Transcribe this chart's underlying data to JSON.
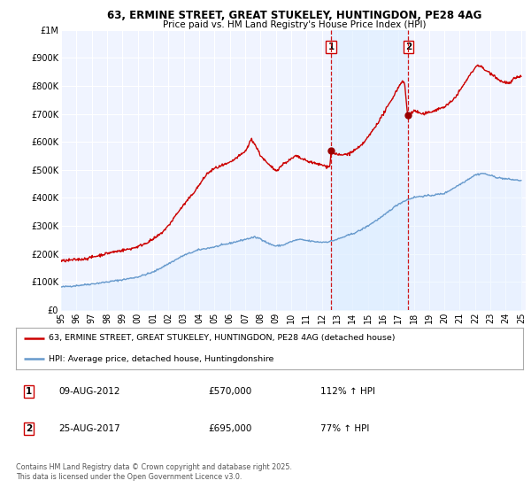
{
  "title": "63, ERMINE STREET, GREAT STUKELEY, HUNTINGDON, PE28 4AG",
  "subtitle": "Price paid vs. HM Land Registry's House Price Index (HPI)",
  "ylim": [
    0,
    1000000
  ],
  "xlim_start": 1995,
  "xlim_end": 2025.3,
  "plot_bg_color": "#f0f4ff",
  "grid_color": "#ffffff",
  "legend_label_red": "63, ERMINE STREET, GREAT STUKELEY, HUNTINGDON, PE28 4AG (detached house)",
  "legend_label_blue": "HPI: Average price, detached house, Huntingdonshire",
  "sale1_date": 2012.6,
  "sale1_price": 570000,
  "sale2_date": 2017.65,
  "sale2_price": 695000,
  "footer": "Contains HM Land Registry data © Crown copyright and database right 2025.\nThis data is licensed under the Open Government Licence v3.0.",
  "red_color": "#cc0000",
  "blue_color": "#6699cc",
  "blue_fill_color": "#ddeeff",
  "shade_color": "#ddeeff",
  "marker_color": "#990000",
  "yticks": [
    0,
    100000,
    200000,
    300000,
    400000,
    500000,
    600000,
    700000,
    800000,
    900000,
    1000000
  ],
  "ylabels": [
    "£0",
    "£100K",
    "£200K",
    "£300K",
    "£400K",
    "£500K",
    "£600K",
    "£700K",
    "£800K",
    "£900K",
    "£1M"
  ]
}
